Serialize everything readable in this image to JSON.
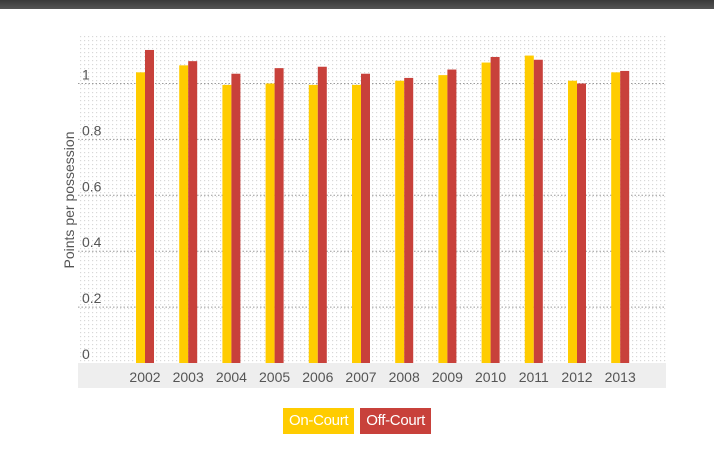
{
  "chart_data": {
    "type": "bar",
    "categories": [
      "2002",
      "2003",
      "2004",
      "2005",
      "2006",
      "2007",
      "2008",
      "2009",
      "2010",
      "2011",
      "2012",
      "2013"
    ],
    "series": [
      {
        "name": "On-Court",
        "color": "#FFCC00",
        "values": [
          1.04,
          1.065,
          0.995,
          1.0,
          0.995,
          0.995,
          1.01,
          1.03,
          1.075,
          1.1,
          1.01,
          1.04
        ]
      },
      {
        "name": "Off-Court",
        "color": "#C8413B",
        "values": [
          1.12,
          1.08,
          1.035,
          1.055,
          1.06,
          1.035,
          1.02,
          1.05,
          1.095,
          1.085,
          1.0,
          1.045
        ]
      }
    ],
    "ylabel": "Points per possession",
    "ylim": [
      0,
      1.17
    ],
    "yticks": [
      0,
      0.2,
      0.4,
      0.6,
      0.8,
      1
    ],
    "ytick_labels": [
      "0",
      "0.2",
      "0.4",
      "0.6",
      "0.8",
      "1"
    ],
    "grid": true,
    "legend_position": "bottom-center"
  }
}
